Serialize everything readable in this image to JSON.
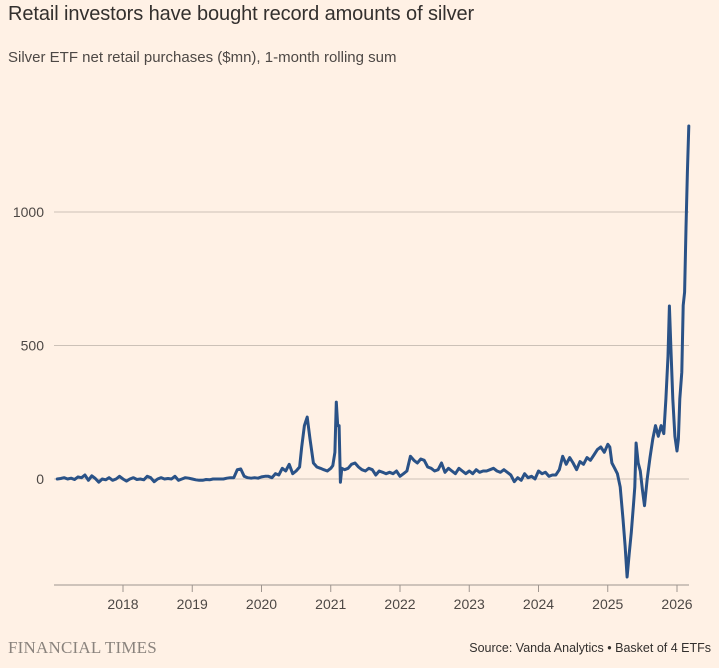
{
  "header": {
    "title": "Retail investors have bought record amounts of silver",
    "subtitle": "Silver ETF net retail purchases ($mn), 1-month rolling sum"
  },
  "footer": {
    "brand": "FINANCIAL TIMES",
    "source": "Source: Vanda Analytics • Basket of 4 ETFs"
  },
  "colors": {
    "background": "#FFF1E5",
    "line": "#2A5287",
    "grid": "#CCC1B7",
    "axis": "#9E958E",
    "text": "#4d4845"
  },
  "chart_data": {
    "type": "line",
    "title": "Retail investors have bought record amounts of silver",
    "subtitle": "Silver ETF net retail purchases ($mn), 1-month rolling sum",
    "xlabel": "",
    "ylabel": "",
    "xlim": [
      2017.05,
      2026.2
    ],
    "ylim": [
      -400,
      1400
    ],
    "grid": true,
    "legend": "none",
    "x_ticks": [
      2018,
      2019,
      2020,
      2021,
      2022,
      2023,
      2024,
      2025,
      2026
    ],
    "x_tick_labels": [
      "2018",
      "2019",
      "2020",
      "2021",
      "2022",
      "2023",
      "2024",
      "2025",
      "2026"
    ],
    "y_ticks": [
      0,
      500,
      1000
    ],
    "y_tick_labels": [
      "0",
      "500",
      "1000"
    ],
    "series": [
      {
        "name": "Silver ETF net retail purchases ($mn)",
        "x": [
          2017.05,
          2017.1,
          2017.15,
          2017.2,
          2017.25,
          2017.3,
          2017.35,
          2017.4,
          2017.45,
          2017.5,
          2017.55,
          2017.6,
          2017.65,
          2017.7,
          2017.75,
          2017.8,
          2017.85,
          2017.9,
          2017.95,
          2018.0,
          2018.05,
          2018.1,
          2018.15,
          2018.2,
          2018.25,
          2018.3,
          2018.35,
          2018.4,
          2018.45,
          2018.5,
          2018.55,
          2018.6,
          2018.65,
          2018.7,
          2018.75,
          2018.8,
          2018.85,
          2018.9,
          2018.95,
          2019.0,
          2019.05,
          2019.1,
          2019.15,
          2019.2,
          2019.25,
          2019.3,
          2019.35,
          2019.4,
          2019.45,
          2019.5,
          2019.55,
          2019.6,
          2019.65,
          2019.7,
          2019.75,
          2019.8,
          2019.85,
          2019.9,
          2019.95,
          2020.0,
          2020.05,
          2020.1,
          2020.15,
          2020.2,
          2020.25,
          2020.3,
          2020.35,
          2020.4,
          2020.45,
          2020.5,
          2020.55,
          2020.58,
          2020.62,
          2020.66,
          2020.7,
          2020.75,
          2020.8,
          2020.85,
          2020.9,
          2020.95,
          2021.0,
          2021.03,
          2021.06,
          2021.08,
          2021.1,
          2021.12,
          2021.14,
          2021.16,
          2021.2,
          2021.25,
          2021.3,
          2021.35,
          2021.4,
          2021.45,
          2021.5,
          2021.55,
          2021.6,
          2021.65,
          2021.7,
          2021.75,
          2021.8,
          2021.85,
          2021.9,
          2021.95,
          2022.0,
          2022.05,
          2022.1,
          2022.15,
          2022.2,
          2022.25,
          2022.3,
          2022.35,
          2022.4,
          2022.45,
          2022.5,
          2022.55,
          2022.6,
          2022.65,
          2022.7,
          2022.75,
          2022.8,
          2022.85,
          2022.9,
          2022.95,
          2023.0,
          2023.05,
          2023.1,
          2023.15,
          2023.2,
          2023.25,
          2023.3,
          2023.35,
          2023.4,
          2023.45,
          2023.5,
          2023.55,
          2023.6,
          2023.65,
          2023.7,
          2023.75,
          2023.8,
          2023.85,
          2023.9,
          2023.95,
          2024.0,
          2024.05,
          2024.1,
          2024.15,
          2024.2,
          2024.25,
          2024.3,
          2024.35,
          2024.4,
          2024.45,
          2024.5,
          2024.55,
          2024.6,
          2024.65,
          2024.7,
          2024.75,
          2024.8,
          2024.85,
          2024.9,
          2024.95,
          2025.0,
          2025.03,
          2025.06,
          2025.1,
          2025.14,
          2025.18,
          2025.22,
          2025.25,
          2025.28,
          2025.31,
          2025.34,
          2025.37,
          2025.39,
          2025.41,
          2025.44,
          2025.47,
          2025.5,
          2025.53,
          2025.57,
          2025.61,
          2025.65,
          2025.69,
          2025.73,
          2025.77,
          2025.81,
          2025.84,
          2025.87,
          2025.89,
          2025.91,
          2025.94,
          2025.97,
          2026.0,
          2026.02,
          2026.04,
          2026.07,
          2026.09,
          2026.11,
          2026.13,
          2026.15,
          2026.17
        ],
        "values": [
          0,
          2,
          5,
          0,
          3,
          -2,
          8,
          5,
          15,
          -5,
          12,
          2,
          -12,
          0,
          -3,
          5,
          -5,
          0,
          10,
          0,
          -8,
          0,
          5,
          -2,
          0,
          -3,
          10,
          5,
          -10,
          0,
          5,
          0,
          2,
          0,
          10,
          -5,
          0,
          5,
          3,
          0,
          -3,
          -5,
          -5,
          -2,
          -3,
          0,
          0,
          0,
          0,
          3,
          5,
          5,
          35,
          38,
          10,
          5,
          3,
          5,
          3,
          8,
          10,
          10,
          5,
          20,
          15,
          40,
          30,
          55,
          20,
          30,
          45,
          120,
          200,
          232,
          150,
          60,
          45,
          40,
          35,
          30,
          40,
          50,
          100,
          288,
          200,
          200,
          -12,
          40,
          35,
          40,
          55,
          60,
          45,
          35,
          30,
          40,
          35,
          15,
          30,
          25,
          20,
          25,
          20,
          30,
          10,
          20,
          30,
          85,
          70,
          60,
          75,
          70,
          45,
          40,
          30,
          35,
          60,
          25,
          40,
          30,
          20,
          40,
          30,
          20,
          30,
          20,
          35,
          25,
          30,
          30,
          35,
          40,
          30,
          25,
          35,
          25,
          15,
          -10,
          5,
          -5,
          20,
          5,
          10,
          0,
          30,
          20,
          25,
          10,
          15,
          15,
          35,
          85,
          55,
          80,
          60,
          35,
          65,
          55,
          80,
          70,
          90,
          110,
          120,
          100,
          130,
          120,
          60,
          40,
          20,
          -30,
          -150,
          -250,
          -367,
          -280,
          -200,
          -100,
          -30,
          135,
          60,
          30,
          -40,
          -100,
          0,
          80,
          150,
          200,
          160,
          200,
          170,
          300,
          460,
          648,
          500,
          300,
          160,
          105,
          150,
          300,
          400,
          650,
          700,
          940,
          1150,
          1322
        ]
      }
    ]
  }
}
